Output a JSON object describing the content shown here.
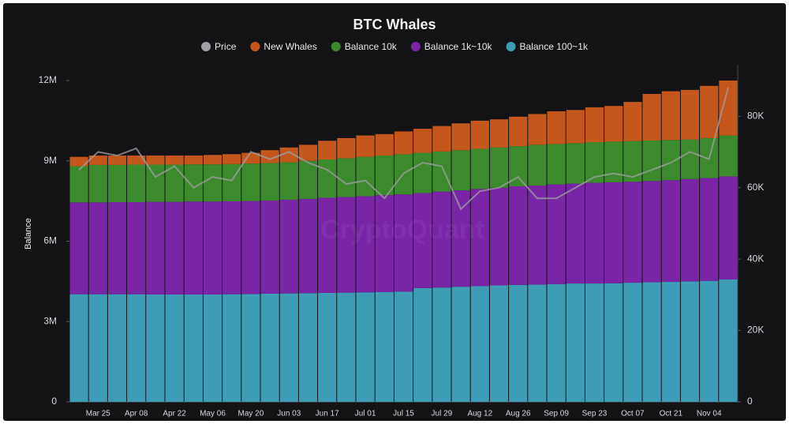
{
  "chart_data": {
    "type": "stacked-bar-line",
    "title": "BTC Whales",
    "y_label": "Balance",
    "watermark": "CryptoQuant",
    "categories": [
      null,
      "Mar 25",
      null,
      "Apr 08",
      null,
      "Apr 22",
      null,
      "May 06",
      null,
      "May 20",
      null,
      "Jun 03",
      null,
      "Jun 17",
      null,
      "Jul 01",
      null,
      "Jul 15",
      null,
      "Jul 29",
      null,
      "Aug 12",
      null,
      "Aug 26",
      null,
      "Sep 09",
      null,
      "Sep 23",
      null,
      "Oct 07",
      null,
      "Oct 21",
      null,
      "Nov 04",
      null
    ],
    "series": [
      {
        "name": "Price",
        "color": "#a0a0a4",
        "kind": "line",
        "axis": "y2",
        "values": [
          65000,
          70000,
          69000,
          71000,
          63000,
          66000,
          60000,
          63000,
          62000,
          70000,
          68000,
          70000,
          67000,
          65000,
          61000,
          62000,
          57000,
          64000,
          67000,
          66000,
          54000,
          59000,
          60000,
          63000,
          57000,
          57000,
          60000,
          63000,
          64000,
          63000,
          65000,
          67000,
          70000,
          68000,
          88000
        ]
      },
      {
        "name": "New Whales",
        "color": "#c4581c",
        "kind": "bar",
        "values": [
          350000,
          350000,
          350000,
          340000,
          340000,
          340000,
          330000,
          350000,
          370000,
          400000,
          480000,
          550000,
          600000,
          700000,
          750000,
          800000,
          800000,
          850000,
          900000,
          950000,
          1000000,
          1050000,
          1050000,
          1100000,
          1150000,
          1220000,
          1240000,
          1300000,
          1330000,
          1460000,
          1740000,
          1820000,
          1850000,
          1950000,
          2050000
        ]
      },
      {
        "name": "Balance 10k",
        "color": "#3b8a2c",
        "kind": "bar",
        "values": [
          1350000,
          1400000,
          1390000,
          1400000,
          1390000,
          1390000,
          1390000,
          1390000,
          1390000,
          1400000,
          1400000,
          1400000,
          1420000,
          1430000,
          1450000,
          1470000,
          1480000,
          1500000,
          1500000,
          1500000,
          1500000,
          1500000,
          1500000,
          1500000,
          1520000,
          1510000,
          1510000,
          1520000,
          1520000,
          1520000,
          1510000,
          1500000,
          1480000,
          1490000,
          1530000
        ]
      },
      {
        "name": "Balance 1k~10k",
        "color": "#7a24a6",
        "kind": "bar",
        "values": [
          3430000,
          3430000,
          3440000,
          3440000,
          3460000,
          3460000,
          3470000,
          3470000,
          3470000,
          3470000,
          3480000,
          3500000,
          3520000,
          3550000,
          3570000,
          3590000,
          3620000,
          3630000,
          3550000,
          3580000,
          3600000,
          3630000,
          3650000,
          3680000,
          3700000,
          3720000,
          3730000,
          3760000,
          3770000,
          3770000,
          3780000,
          3800000,
          3820000,
          3840000,
          3850000
        ]
      },
      {
        "name": "Balance 100~1k",
        "color": "#3d9db6",
        "kind": "bar",
        "values": [
          4020000,
          4020000,
          4020000,
          4020000,
          4010000,
          4010000,
          4010000,
          4010000,
          4020000,
          4030000,
          4040000,
          4050000,
          4060000,
          4070000,
          4080000,
          4090000,
          4100000,
          4120000,
          4250000,
          4270000,
          4300000,
          4320000,
          4350000,
          4370000,
          4380000,
          4400000,
          4420000,
          4420000,
          4430000,
          4450000,
          4470000,
          4480000,
          4500000,
          4520000,
          4570000
        ]
      }
    ],
    "ylim": [
      0,
      12000000
    ],
    "yticks": [
      0,
      {
        "value": 3000000,
        "label": "3M"
      },
      {
        "value": 6000000,
        "label": "6M"
      },
      {
        "value": 9000000,
        "label": "9M"
      },
      {
        "value": 12000000,
        "label": "12M"
      }
    ],
    "y2lim": [
      0,
      90000
    ],
    "y2ticks": [
      0,
      {
        "value": 20000,
        "label": "20K"
      },
      {
        "value": 40000,
        "label": "40K"
      },
      {
        "value": 60000,
        "label": "60K"
      },
      {
        "value": 80000,
        "label": "80K"
      }
    ],
    "grid": false,
    "legend": "top"
  }
}
